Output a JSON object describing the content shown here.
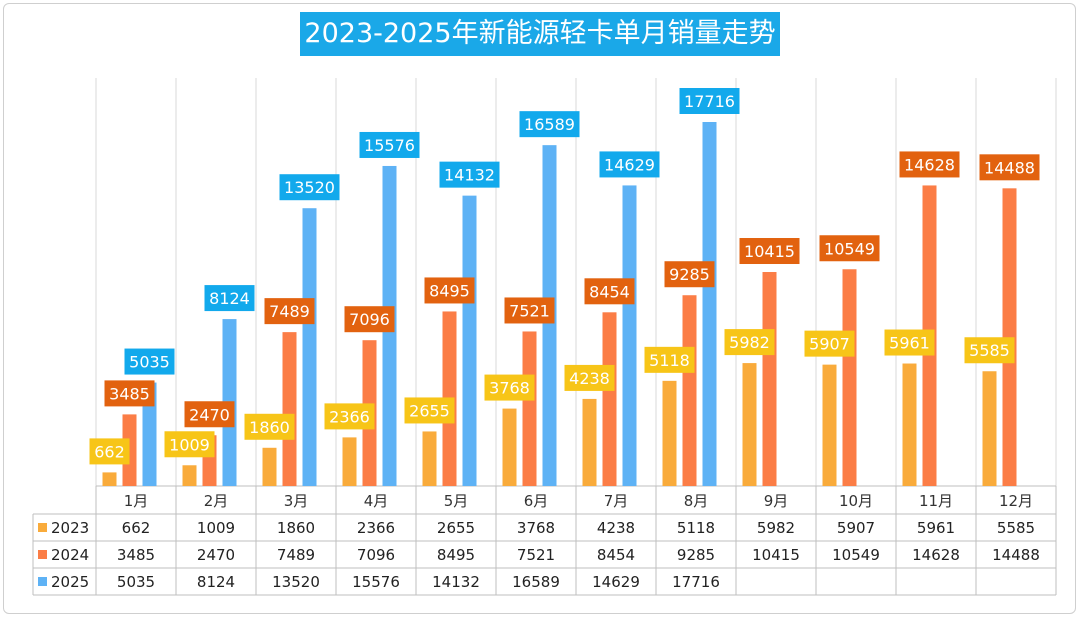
{
  "chart_data": {
    "type": "bar",
    "title": "2023-2025年新能源轻卡单月销量走势",
    "categories": [
      "1月",
      "2月",
      "3月",
      "4月",
      "5月",
      "6月",
      "7月",
      "8月",
      "9月",
      "10月",
      "11月",
      "12月"
    ],
    "series": [
      {
        "name": "2023",
        "color": "#f9ab3b",
        "label_color": "#f7c518",
        "values": [
          662,
          1009,
          1860,
          2366,
          2655,
          3768,
          4238,
          5118,
          5982,
          5907,
          5961,
          5585
        ]
      },
      {
        "name": "2024",
        "color": "#fb7d46",
        "label_color": "#e2620f",
        "values": [
          3485,
          2470,
          7489,
          7096,
          8495,
          7521,
          8454,
          9285,
          10415,
          10549,
          14628,
          14488
        ]
      },
      {
        "name": "2025",
        "color": "#5eb2f5",
        "label_color": "#12a9ec",
        "values": [
          5035,
          8124,
          13520,
          15576,
          14132,
          16589,
          14629,
          17716,
          null,
          null,
          null,
          null
        ]
      }
    ],
    "ylim": [
      0,
      20000
    ],
    "grid": "vertical",
    "legend": "data-table",
    "data_labels": true
  }
}
